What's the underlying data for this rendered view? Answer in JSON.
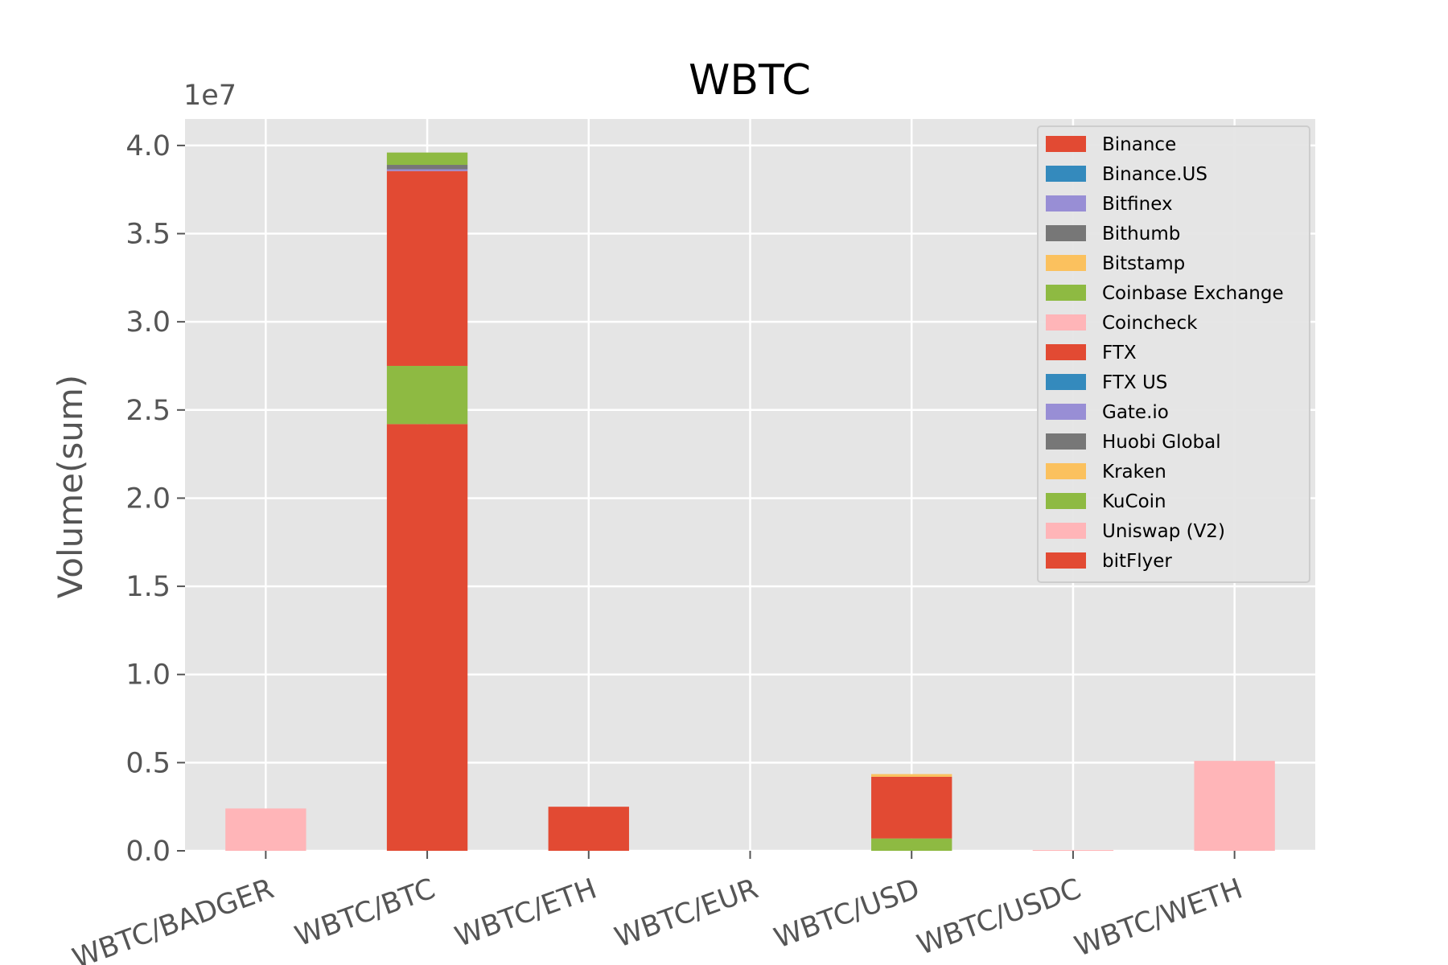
{
  "chart_data": {
    "type": "bar",
    "stacked": true,
    "title": "WBTC",
    "xlabel": "",
    "ylabel": "Volume(sum)",
    "y_scale_label": "1e7",
    "ylim": [
      0,
      41500000
    ],
    "y_ticks": [
      0,
      5000000,
      10000000,
      15000000,
      20000000,
      25000000,
      30000000,
      35000000,
      40000000
    ],
    "y_tick_labels": [
      "0.0",
      "0.5",
      "1.0",
      "1.5",
      "2.0",
      "2.5",
      "3.0",
      "3.5",
      "4.0"
    ],
    "grid": true,
    "legend_position": "top-right",
    "categories": [
      "WBTC/BADGER",
      "WBTC/BTC",
      "WBTC/ETH",
      "WBTC/EUR",
      "WBTC/USD",
      "WBTC/USDC",
      "WBTC/WETH"
    ],
    "series": [
      {
        "name": "Binance",
        "color": "#E24A33",
        "values": [
          0,
          24200000,
          0,
          0,
          0,
          0,
          0
        ]
      },
      {
        "name": "Binance.US",
        "color": "#348ABD",
        "values": [
          0,
          0,
          0,
          0,
          0,
          0,
          0
        ]
      },
      {
        "name": "Bitfinex",
        "color": "#988ED5",
        "values": [
          0,
          0,
          0,
          0,
          0,
          0,
          0
        ]
      },
      {
        "name": "Bithumb",
        "color": "#777777",
        "values": [
          0,
          0,
          0,
          0,
          0,
          0,
          0
        ]
      },
      {
        "name": "Bitstamp",
        "color": "#FBC15E",
        "values": [
          0,
          0,
          0,
          0,
          0,
          0,
          0
        ]
      },
      {
        "name": "Coinbase Exchange",
        "color": "#8EBA42",
        "values": [
          0,
          3300000,
          0,
          0,
          700000,
          0,
          0
        ]
      },
      {
        "name": "Coincheck",
        "color": "#FFB5B8",
        "values": [
          0,
          0,
          0,
          0,
          0,
          0,
          0
        ]
      },
      {
        "name": "FTX",
        "color": "#E24A33",
        "values": [
          0,
          11050000,
          0,
          0,
          3500000,
          0,
          0
        ]
      },
      {
        "name": "FTX US",
        "color": "#348ABD",
        "values": [
          0,
          0,
          0,
          0,
          0,
          0,
          0
        ]
      },
      {
        "name": "Gate.io",
        "color": "#988ED5",
        "values": [
          0,
          100000,
          0,
          0,
          0,
          0,
          0
        ]
      },
      {
        "name": "Huobi Global",
        "color": "#777777",
        "values": [
          0,
          250000,
          0,
          0,
          0,
          0,
          0
        ]
      },
      {
        "name": "Kraken",
        "color": "#FBC15E",
        "values": [
          0,
          0,
          0,
          0,
          150000,
          0,
          0
        ]
      },
      {
        "name": "KuCoin",
        "color": "#8EBA42",
        "values": [
          0,
          700000,
          0,
          0,
          0,
          0,
          0
        ]
      },
      {
        "name": "Uniswap (V2)",
        "color": "#FFB5B8",
        "values": [
          2400000,
          0,
          0,
          0,
          0,
          50000,
          5100000
        ]
      },
      {
        "name": "bitFlyer",
        "color": "#E24A33",
        "values": [
          0,
          0,
          2500000,
          0,
          0,
          0,
          0
        ]
      }
    ]
  },
  "colors": {
    "plot_background": "#E5E5E5",
    "grid": "#FFFFFF",
    "text": "#555555",
    "legend_background": "#E5E5E5",
    "legend_border": "#CCCCCC"
  }
}
